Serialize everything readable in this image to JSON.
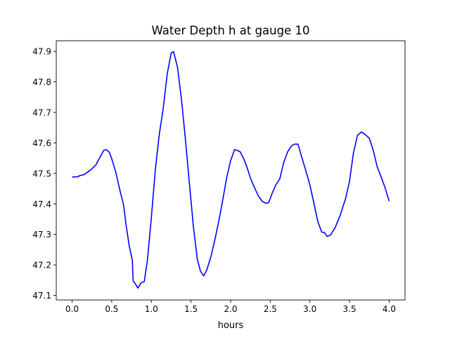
{
  "chart_data": {
    "type": "line",
    "title": "Water Depth h at gauge 10",
    "xlabel": "hours",
    "ylabel": "",
    "xlim": [
      -0.2,
      4.2
    ],
    "ylim": [
      47.085,
      47.935
    ],
    "x_ticks": [
      0.0,
      0.5,
      1.0,
      1.5,
      2.0,
      2.5,
      3.0,
      3.5,
      4.0
    ],
    "x_tick_labels": [
      "0.0",
      "0.5",
      "1.0",
      "1.5",
      "2.0",
      "2.5",
      "3.0",
      "3.5",
      "4.0"
    ],
    "y_ticks": [
      47.1,
      47.2,
      47.3,
      47.4,
      47.5,
      47.6,
      47.7,
      47.8,
      47.9
    ],
    "y_tick_labels": [
      "47.1",
      "47.2",
      "47.3",
      "47.4",
      "47.5",
      "47.6",
      "47.7",
      "47.8",
      "47.9"
    ],
    "grid": false,
    "legend": "none",
    "series": [
      {
        "color": "#0000ff",
        "points": [
          [
            0.0,
            47.488
          ],
          [
            0.07,
            47.489
          ],
          [
            0.1,
            47.493
          ],
          [
            0.15,
            47.496
          ],
          [
            0.2,
            47.505
          ],
          [
            0.25,
            47.515
          ],
          [
            0.3,
            47.528
          ],
          [
            0.35,
            47.552
          ],
          [
            0.4,
            47.576
          ],
          [
            0.43,
            47.578
          ],
          [
            0.47,
            47.569
          ],
          [
            0.5,
            47.548
          ],
          [
            0.55,
            47.505
          ],
          [
            0.6,
            47.448
          ],
          [
            0.65,
            47.396
          ],
          [
            0.68,
            47.333
          ],
          [
            0.72,
            47.263
          ],
          [
            0.76,
            47.215
          ],
          [
            0.77,
            47.148
          ],
          [
            0.8,
            47.137
          ],
          [
            0.83,
            47.124
          ],
          [
            0.87,
            47.141
          ],
          [
            0.91,
            47.145
          ],
          [
            0.95,
            47.215
          ],
          [
            1.0,
            47.355
          ],
          [
            1.05,
            47.512
          ],
          [
            1.1,
            47.628
          ],
          [
            1.15,
            47.714
          ],
          [
            1.2,
            47.826
          ],
          [
            1.25,
            47.895
          ],
          [
            1.28,
            47.899
          ],
          [
            1.33,
            47.848
          ],
          [
            1.38,
            47.742
          ],
          [
            1.43,
            47.611
          ],
          [
            1.48,
            47.467
          ],
          [
            1.53,
            47.326
          ],
          [
            1.58,
            47.218
          ],
          [
            1.62,
            47.179
          ],
          [
            1.66,
            47.164
          ],
          [
            1.7,
            47.184
          ],
          [
            1.75,
            47.226
          ],
          [
            1.8,
            47.281
          ],
          [
            1.85,
            47.343
          ],
          [
            1.9,
            47.412
          ],
          [
            1.95,
            47.486
          ],
          [
            2.0,
            47.542
          ],
          [
            2.05,
            47.578
          ],
          [
            2.08,
            47.576
          ],
          [
            2.12,
            47.571
          ],
          [
            2.16,
            47.551
          ],
          [
            2.2,
            47.525
          ],
          [
            2.25,
            47.485
          ],
          [
            2.3,
            47.454
          ],
          [
            2.35,
            47.426
          ],
          [
            2.4,
            47.408
          ],
          [
            2.45,
            47.402
          ],
          [
            2.48,
            47.404
          ],
          [
            2.52,
            47.432
          ],
          [
            2.57,
            47.462
          ],
          [
            2.62,
            47.482
          ],
          [
            2.67,
            47.536
          ],
          [
            2.72,
            47.571
          ],
          [
            2.77,
            47.591
          ],
          [
            2.81,
            47.596
          ],
          [
            2.85,
            47.596
          ],
          [
            2.9,
            47.551
          ],
          [
            2.95,
            47.508
          ],
          [
            3.0,
            47.462
          ],
          [
            3.05,
            47.403
          ],
          [
            3.1,
            47.342
          ],
          [
            3.15,
            47.307
          ],
          [
            3.18,
            47.307
          ],
          [
            3.22,
            47.293
          ],
          [
            3.26,
            47.298
          ],
          [
            3.32,
            47.323
          ],
          [
            3.38,
            47.361
          ],
          [
            3.45,
            47.417
          ],
          [
            3.5,
            47.474
          ],
          [
            3.55,
            47.568
          ],
          [
            3.6,
            47.624
          ],
          [
            3.65,
            47.636
          ],
          [
            3.7,
            47.627
          ],
          [
            3.75,
            47.615
          ],
          [
            3.8,
            47.575
          ],
          [
            3.85,
            47.521
          ],
          [
            3.9,
            47.488
          ],
          [
            3.95,
            47.452
          ],
          [
            4.0,
            47.409
          ]
        ]
      }
    ]
  }
}
